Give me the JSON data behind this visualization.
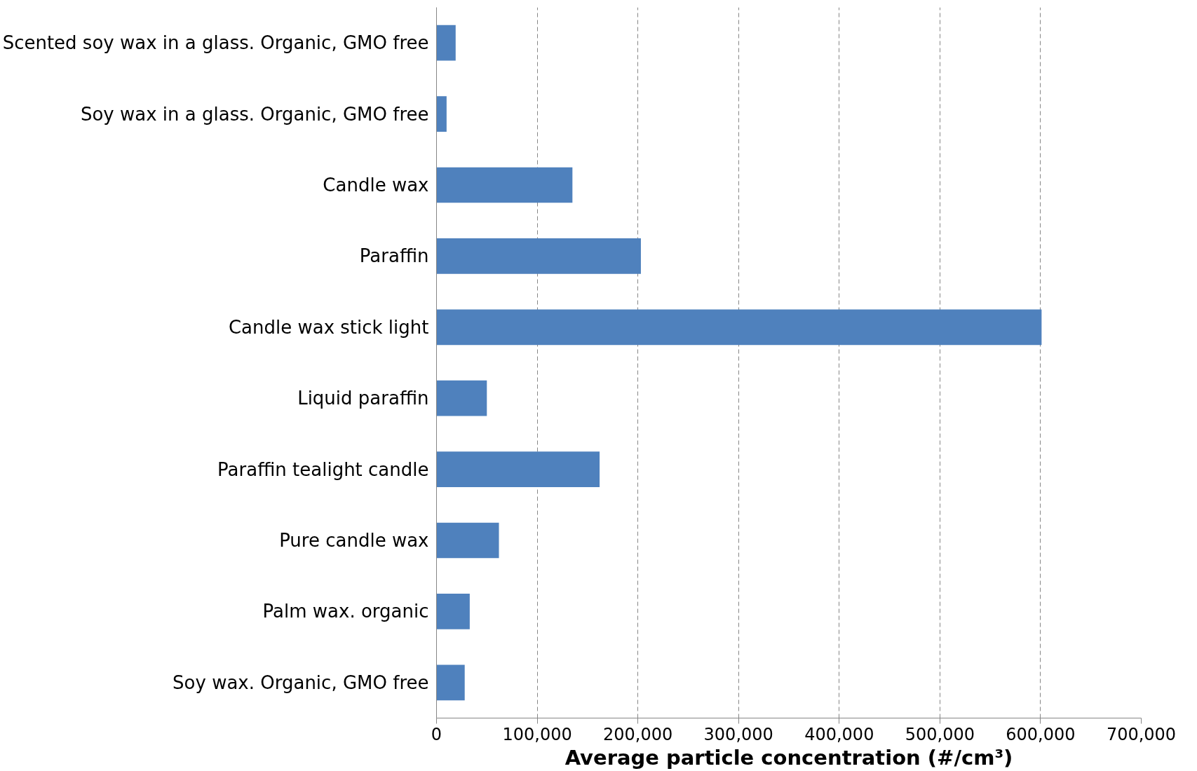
{
  "chart_data": {
    "type": "bar",
    "orientation": "horizontal",
    "xlabel": "Average particle concentration (#/cm³)",
    "categories": [
      "Scented soy wax in a glass. Organic, GMO free",
      "Soy wax in a glass. Organic, GMO free",
      "Candle wax",
      "Paraffin",
      "Candle wax stick light",
      "Liquid paraffin",
      "Paraffin tealight candle",
      "Pure candle wax",
      "Palm wax. organic",
      "Soy wax. Organic, GMO free"
    ],
    "values": [
      19000,
      10000,
      135000,
      203000,
      601000,
      50000,
      162000,
      62000,
      33000,
      28000
    ],
    "color": "#4f81bd",
    "xlim": [
      0,
      700000
    ],
    "xticks": [
      0,
      {
        "value": 100000,
        "label": "100,000"
      },
      {
        "value": 200000,
        "label": "200,000"
      },
      {
        "value": 300000,
        "label": "300,000"
      },
      {
        "value": 400000,
        "label": "400,000"
      },
      {
        "value": 500000,
        "label": "500,000"
      },
      {
        "value": 600000,
        "label": "600,000"
      },
      {
        "value": 700000,
        "label": "700,000"
      }
    ],
    "grid": "x"
  }
}
